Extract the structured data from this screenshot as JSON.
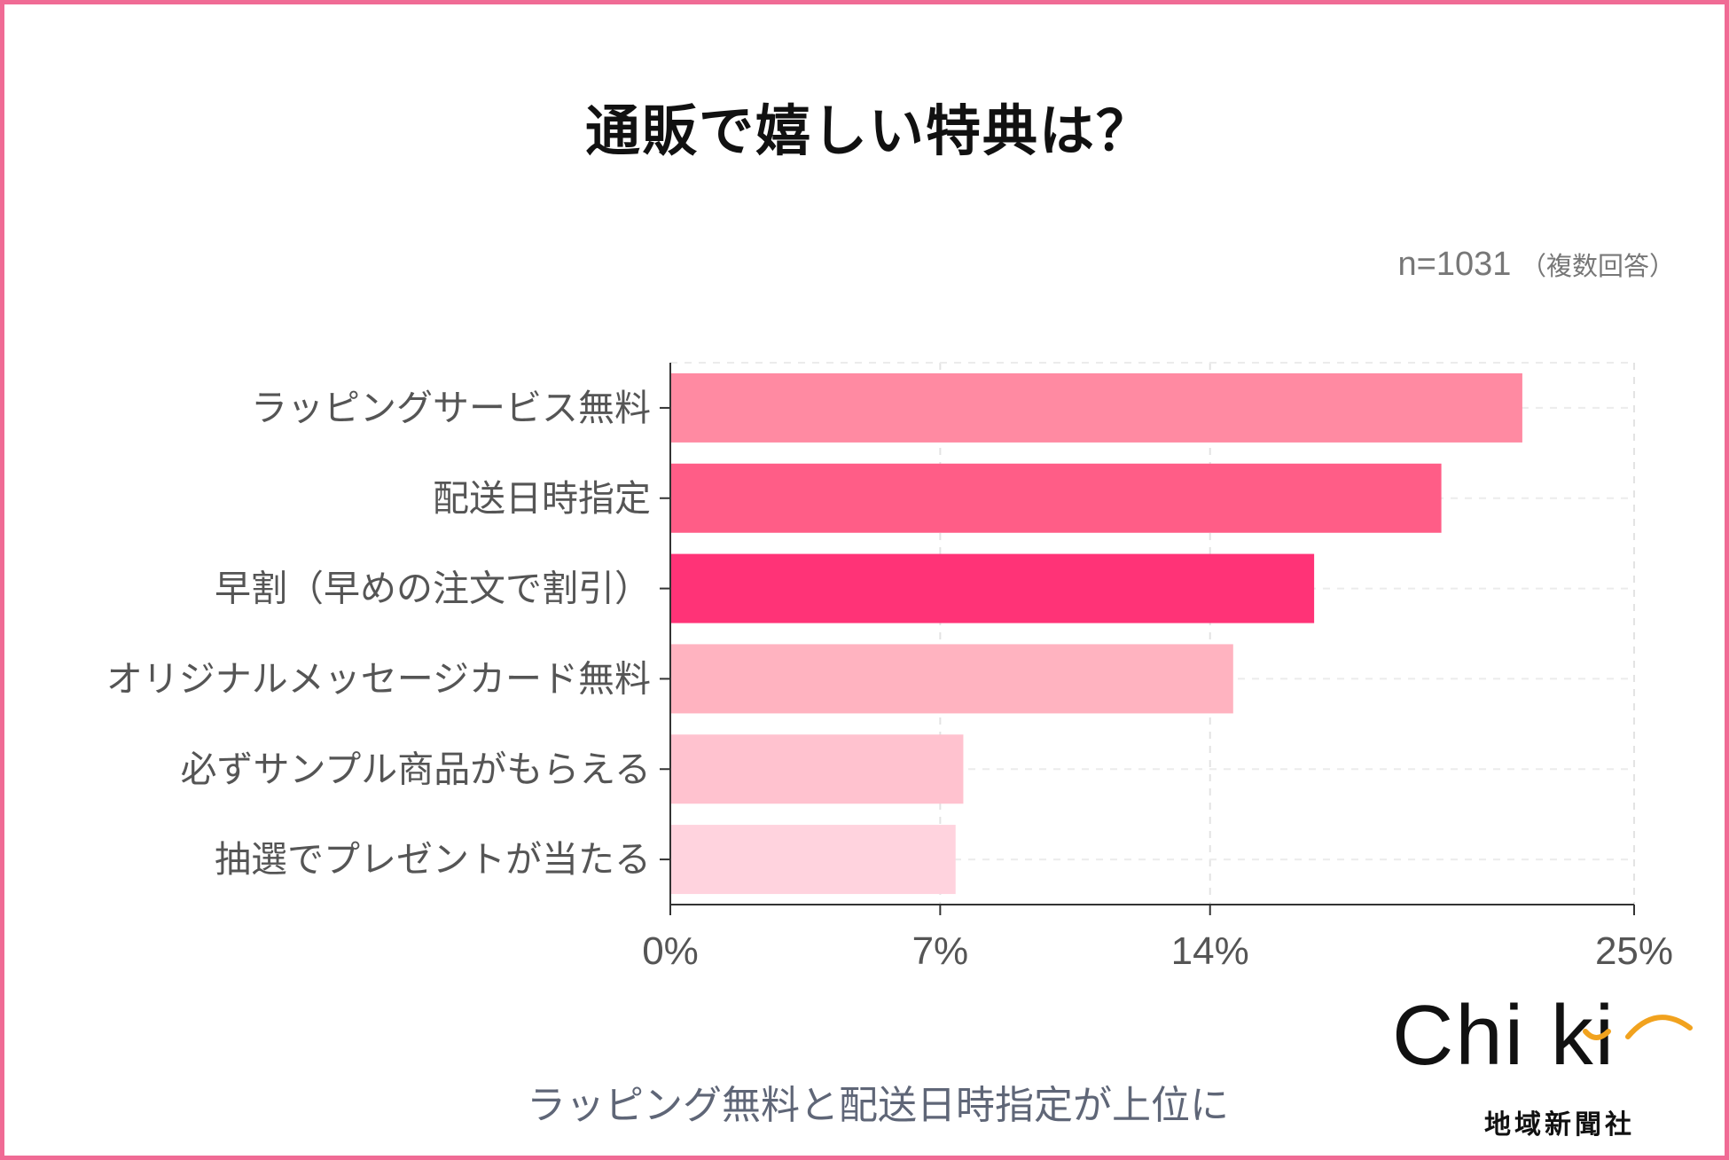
{
  "chart_data": {
    "type": "bar",
    "orientation": "horizontal",
    "title": "通販で嬉しい特典は？",
    "sample_size": "n=1031",
    "sample_note": "（複数回答）",
    "categories": [
      "ラッピングサービス無料",
      "配送日時指定",
      "早割（早めの注文で割引）",
      "オリジナルメッセージカード無料",
      "必ずサンプル商品がもらえる",
      "抽選でプレゼントが当たる"
    ],
    "values": [
      22.1,
      20.0,
      16.7,
      14.6,
      7.6,
      7.4
    ],
    "x_ticks": [
      0,
      7,
      14,
      25
    ],
    "x_tick_labels": [
      "0%",
      "7%",
      "14%",
      "25%"
    ],
    "xlim": [
      0,
      25
    ],
    "grid": true,
    "colors": [
      "#ff8aa2",
      "#ff5d87",
      "#ff3377",
      "#ffb3c0",
      "#ffc2cf",
      "#ffd3de"
    ],
    "caption": "ラッピング無料と配送日時指定が上位に"
  },
  "logo": {
    "main_text": "Chi ki",
    "sub_text": "地域新聞社",
    "arc_color": "#f1a21e"
  }
}
